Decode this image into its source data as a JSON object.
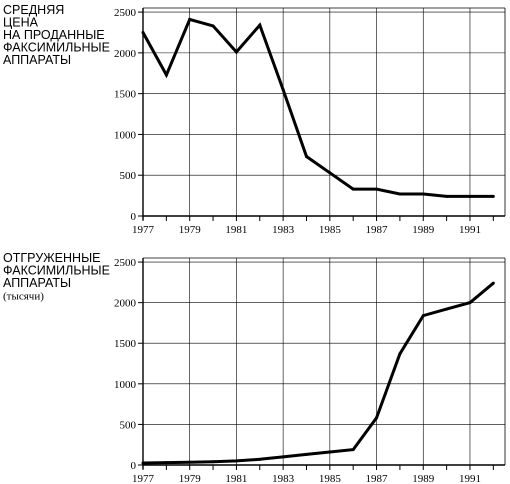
{
  "chart_data": [
    {
      "type": "line",
      "title_lines": [
        "СРЕДНЯЯ",
        "ЦЕНА",
        "НА ПРОДАННЫЕ",
        "ФАКСИМИЛЬНЫЕ",
        "АППАРАТЫ"
      ],
      "subtitle": "",
      "x": [
        1977,
        1978,
        1979,
        1980,
        1981,
        1982,
        1983,
        1984,
        1985,
        1986,
        1987,
        1988,
        1989,
        1990,
        1991,
        1992
      ],
      "y": [
        2250,
        1730,
        2410,
        2330,
        2010,
        2340,
        1550,
        730,
        530,
        330,
        330,
        270,
        270,
        240,
        240,
        240
      ],
      "xticks": [
        "1977",
        "1979",
        "1981",
        "1983",
        "1985",
        "1987",
        "1989",
        "1991"
      ],
      "yticks": [
        "0",
        "500",
        "1000",
        "1500",
        "2000",
        "2500"
      ],
      "xlim": [
        1977,
        1992.5
      ],
      "ylim": [
        0,
        2550
      ],
      "grid": true
    },
    {
      "type": "line",
      "title_lines": [
        "ОТГРУЖЕННЫЕ",
        "ФАКСИМИЛЬНЫЕ",
        "АППАРАТЫ"
      ],
      "subtitle": "(тысячи)",
      "x": [
        1977,
        1978,
        1979,
        1980,
        1981,
        1982,
        1983,
        1984,
        1985,
        1986,
        1987,
        1988,
        1989,
        1990,
        1991,
        1992
      ],
      "y": [
        25,
        30,
        35,
        40,
        50,
        70,
        100,
        130,
        160,
        190,
        580,
        1370,
        1840,
        1920,
        2000,
        2240
      ],
      "xticks": [
        "1977",
        "1979",
        "1981",
        "1983",
        "1985",
        "1987",
        "1989",
        "1991"
      ],
      "yticks": [
        "0",
        "500",
        "1000",
        "1500",
        "2000",
        "2500"
      ],
      "xlim": [
        1977,
        1992.5
      ],
      "ylim": [
        0,
        2550
      ],
      "grid": true
    }
  ]
}
